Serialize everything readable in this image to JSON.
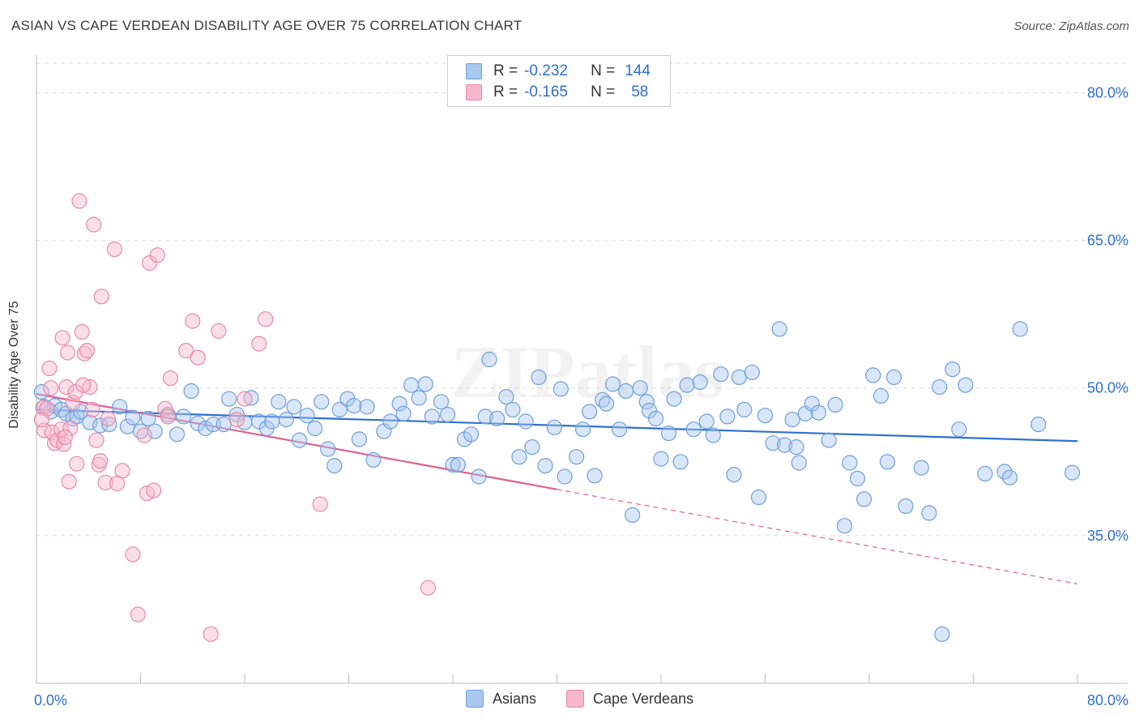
{
  "header": {
    "title": "ASIAN VS CAPE VERDEAN DISABILITY AGE OVER 75 CORRELATION CHART",
    "source": "Source: ZipAtlas.com"
  },
  "legend": {
    "rows": [
      {
        "r_label": "R =",
        "r_value": "-0.232",
        "n_label": "N =",
        "n_value": "144"
      },
      {
        "r_label": "R =",
        "r_value": "-0.165",
        "n_label": "N =",
        "n_value": "58"
      }
    ],
    "series": [
      {
        "name": "Asians",
        "color": "#a9c8f0"
      },
      {
        "name": "Cape Verdeans",
        "color": "#f6b8cb"
      }
    ]
  },
  "chart_data": {
    "type": "scatter",
    "ylabel": "Disability Age Over 75",
    "xlim": [
      0,
      80
    ],
    "ylim": [
      20,
      83
    ],
    "x_tick_labels": {
      "left": "0.0%",
      "right": "80.0%"
    },
    "y_ticks": [
      {
        "value": 80,
        "label": "80.0%"
      },
      {
        "value": 65,
        "label": "65.0%"
      },
      {
        "value": 50,
        "label": "50.0%"
      },
      {
        "value": 35,
        "label": "35.0%"
      }
    ],
    "grid": "horizontal dashed",
    "watermark": "ZIPatlas",
    "series": [
      {
        "name": "Asians",
        "color": "#a9c8f0",
        "stroke": "#6f9fdc",
        "trend": {
          "x1": 0,
          "y1": 47.8,
          "x2": 80,
          "y2": 44.6,
          "color": "#2f6fcf",
          "dashed_from": null
        },
        "points": [
          [
            0.4,
            49.6
          ],
          [
            0.6,
            48.1
          ],
          [
            1.1,
            47.6
          ],
          [
            1.4,
            48.2
          ],
          [
            1.9,
            47.8
          ],
          [
            2.3,
            47.4
          ],
          [
            2.8,
            46.9
          ],
          [
            3.1,
            47.1
          ],
          [
            3.4,
            47.6
          ],
          [
            4.1,
            46.5
          ],
          [
            4.9,
            46.2
          ],
          [
            5.6,
            46.3
          ],
          [
            6.4,
            48.1
          ],
          [
            7.0,
            46.1
          ],
          [
            7.4,
            47.0
          ],
          [
            8.0,
            45.6
          ],
          [
            8.6,
            46.9
          ],
          [
            9.1,
            45.6
          ],
          [
            10.1,
            47.3
          ],
          [
            10.8,
            45.3
          ],
          [
            11.3,
            47.1
          ],
          [
            11.9,
            49.7
          ],
          [
            12.4,
            46.4
          ],
          [
            13.0,
            45.9
          ],
          [
            13.6,
            46.3
          ],
          [
            14.4,
            46.3
          ],
          [
            14.8,
            48.9
          ],
          [
            15.4,
            47.3
          ],
          [
            16.0,
            46.5
          ],
          [
            16.5,
            49.0
          ],
          [
            17.1,
            46.6
          ],
          [
            17.7,
            45.9
          ],
          [
            18.1,
            46.6
          ],
          [
            18.6,
            48.6
          ],
          [
            19.2,
            46.8
          ],
          [
            19.8,
            48.1
          ],
          [
            20.2,
            44.7
          ],
          [
            20.8,
            47.2
          ],
          [
            21.4,
            45.9
          ],
          [
            21.9,
            48.6
          ],
          [
            22.4,
            43.8
          ],
          [
            22.9,
            42.1
          ],
          [
            23.3,
            47.8
          ],
          [
            23.9,
            48.9
          ],
          [
            24.4,
            48.2
          ],
          [
            24.8,
            44.8
          ],
          [
            25.4,
            48.1
          ],
          [
            25.9,
            42.7
          ],
          [
            26.7,
            45.6
          ],
          [
            27.2,
            46.6
          ],
          [
            27.9,
            48.4
          ],
          [
            28.2,
            47.4
          ],
          [
            28.8,
            50.3
          ],
          [
            29.4,
            49.0
          ],
          [
            29.9,
            50.4
          ],
          [
            30.4,
            47.1
          ],
          [
            31.1,
            48.6
          ],
          [
            31.6,
            47.3
          ],
          [
            32.0,
            42.2
          ],
          [
            32.4,
            42.2
          ],
          [
            32.9,
            44.8
          ],
          [
            33.4,
            45.3
          ],
          [
            34.0,
            41.0
          ],
          [
            34.5,
            47.1
          ],
          [
            34.8,
            52.9
          ],
          [
            35.4,
            46.9
          ],
          [
            36.1,
            49.1
          ],
          [
            36.6,
            47.8
          ],
          [
            37.1,
            43.0
          ],
          [
            37.6,
            46.6
          ],
          [
            38.1,
            44.0
          ],
          [
            38.6,
            51.1
          ],
          [
            39.1,
            42.1
          ],
          [
            39.8,
            46.0
          ],
          [
            40.3,
            49.9
          ],
          [
            40.6,
            41.0
          ],
          [
            41.5,
            43.0
          ],
          [
            42.0,
            45.8
          ],
          [
            42.5,
            47.6
          ],
          [
            42.9,
            41.1
          ],
          [
            43.5,
            48.8
          ],
          [
            43.8,
            48.4
          ],
          [
            44.3,
            50.4
          ],
          [
            44.8,
            45.8
          ],
          [
            45.3,
            49.7
          ],
          [
            45.8,
            37.1
          ],
          [
            46.4,
            50.0
          ],
          [
            46.9,
            48.6
          ],
          [
            47.1,
            47.7
          ],
          [
            47.6,
            46.9
          ],
          [
            48.0,
            42.8
          ],
          [
            48.6,
            45.4
          ],
          [
            49.0,
            48.9
          ],
          [
            49.5,
            42.5
          ],
          [
            50.0,
            50.3
          ],
          [
            50.5,
            45.8
          ],
          [
            51.0,
            50.6
          ],
          [
            51.5,
            46.6
          ],
          [
            52.0,
            45.2
          ],
          [
            52.6,
            51.4
          ],
          [
            53.1,
            47.1
          ],
          [
            53.6,
            41.2
          ],
          [
            54.0,
            51.1
          ],
          [
            54.4,
            47.8
          ],
          [
            55.0,
            51.6
          ],
          [
            55.5,
            38.9
          ],
          [
            56.0,
            47.2
          ],
          [
            56.6,
            44.4
          ],
          [
            57.1,
            56.0
          ],
          [
            57.5,
            44.2
          ],
          [
            58.1,
            46.8
          ],
          [
            58.6,
            42.4
          ],
          [
            59.1,
            47.4
          ],
          [
            59.6,
            48.4
          ],
          [
            60.1,
            47.5
          ],
          [
            60.9,
            44.7
          ],
          [
            61.4,
            48.3
          ],
          [
            62.1,
            36.0
          ],
          [
            62.5,
            42.4
          ],
          [
            63.1,
            40.8
          ],
          [
            63.6,
            38.7
          ],
          [
            64.3,
            51.3
          ],
          [
            64.9,
            49.2
          ],
          [
            65.4,
            42.5
          ],
          [
            65.9,
            51.1
          ],
          [
            66.8,
            38.0
          ],
          [
            68.0,
            41.9
          ],
          [
            68.6,
            37.3
          ],
          [
            69.4,
            50.1
          ],
          [
            70.4,
            51.9
          ],
          [
            70.9,
            45.8
          ],
          [
            71.4,
            50.3
          ],
          [
            72.9,
            41.3
          ],
          [
            74.4,
            41.5
          ],
          [
            74.8,
            40.9
          ],
          [
            77.0,
            46.3
          ],
          [
            79.6,
            41.4
          ],
          [
            75.6,
            56.0
          ],
          [
            69.6,
            25.0
          ],
          [
            58.4,
            44.0
          ]
        ]
      },
      {
        "name": "Cape Verdeans",
        "color": "#f6b8cb",
        "stroke": "#e889a8",
        "trend": {
          "x1": 0,
          "y1": 49.4,
          "x2": 40,
          "y2": 39.7,
          "x3": 80,
          "y3": 30.1,
          "color": "#e0608f"
        },
        "points": [
          [
            0.5,
            48.0
          ],
          [
            0.6,
            45.7
          ],
          [
            0.8,
            47.9
          ],
          [
            1.0,
            52.0
          ],
          [
            1.2,
            45.5
          ],
          [
            1.4,
            44.4
          ],
          [
            1.6,
            44.7
          ],
          [
            1.9,
            45.8
          ],
          [
            2.0,
            55.1
          ],
          [
            2.1,
            44.3
          ],
          [
            2.3,
            50.1
          ],
          [
            2.4,
            53.6
          ],
          [
            2.5,
            40.5
          ],
          [
            2.6,
            45.9
          ],
          [
            2.8,
            48.5
          ],
          [
            3.0,
            49.6
          ],
          [
            3.1,
            42.3
          ],
          [
            3.3,
            69.0
          ],
          [
            3.5,
            55.7
          ],
          [
            3.7,
            53.5
          ],
          [
            3.9,
            53.8
          ],
          [
            4.1,
            50.1
          ],
          [
            4.4,
            66.6
          ],
          [
            4.6,
            44.7
          ],
          [
            4.8,
            42.2
          ],
          [
            4.9,
            42.6
          ],
          [
            5.0,
            59.3
          ],
          [
            5.3,
            40.4
          ],
          [
            5.5,
            46.9
          ],
          [
            6.0,
            64.1
          ],
          [
            6.2,
            40.3
          ],
          [
            6.6,
            41.6
          ],
          [
            7.4,
            33.1
          ],
          [
            7.8,
            27.0
          ],
          [
            8.3,
            45.2
          ],
          [
            8.5,
            39.3
          ],
          [
            8.7,
            62.7
          ],
          [
            9.0,
            39.6
          ],
          [
            9.3,
            63.5
          ],
          [
            9.9,
            47.9
          ],
          [
            10.1,
            47.1
          ],
          [
            10.3,
            51.0
          ],
          [
            11.5,
            53.8
          ],
          [
            12.0,
            56.8
          ],
          [
            12.4,
            53.1
          ],
          [
            13.4,
            25.0
          ],
          [
            14.0,
            55.8
          ],
          [
            15.4,
            46.8
          ],
          [
            16.0,
            48.9
          ],
          [
            17.1,
            54.5
          ],
          [
            17.6,
            57.0
          ],
          [
            21.8,
            38.2
          ],
          [
            30.1,
            29.7
          ],
          [
            0.4,
            46.8
          ],
          [
            1.1,
            50.0
          ],
          [
            2.2,
            45.0
          ],
          [
            4.3,
            47.8
          ],
          [
            3.6,
            50.3
          ]
        ]
      }
    ]
  }
}
